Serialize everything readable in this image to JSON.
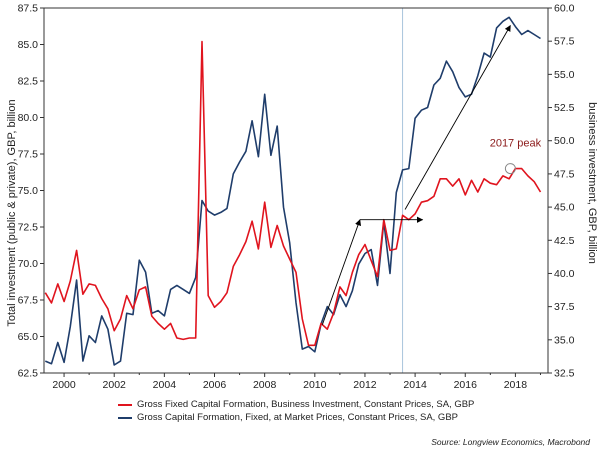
{
  "chart_data": {
    "type": "line",
    "title": "",
    "xlabel": "",
    "ylabel_left": "Total investment (public & private), GBP, billion",
    "ylabel_right": "business investment, GBP, billion",
    "xlim": [
      1999.2,
      2019.3
    ],
    "ylim_left": [
      62.5,
      87.5
    ],
    "ylim_right": [
      32.5,
      60.0
    ],
    "x_ticks": [
      2000,
      2002,
      2004,
      2006,
      2008,
      2010,
      2012,
      2014,
      2016,
      2018
    ],
    "y_ticks_left": [
      "62.5",
      "65.0",
      "67.5",
      "70.0",
      "72.5",
      "75.0",
      "77.5",
      "80.0",
      "82.5",
      "85.0",
      "87.5"
    ],
    "y_ticks_right": [
      "32.5",
      "35.0",
      "37.5",
      "40.0",
      "42.5",
      "45.0",
      "47.5",
      "50.0",
      "52.5",
      "55.0",
      "57.5",
      "60.0"
    ],
    "grid": false,
    "vertical_marker_x": 2013.5,
    "series": [
      {
        "name": "Gross Fixed Capital Formation, Business Investment, Constant Prices, SA, GBP",
        "color": "#e0141e",
        "axis": "left",
        "x": [
          1999.25,
          1999.5,
          1999.75,
          2000.0,
          2000.25,
          2000.5,
          2000.75,
          2001.0,
          2001.25,
          2001.5,
          2001.75,
          2002.0,
          2002.25,
          2002.5,
          2002.75,
          2003.0,
          2003.25,
          2003.5,
          2003.75,
          2004.0,
          2004.25,
          2004.5,
          2004.75,
          2005.0,
          2005.25,
          2005.5,
          2005.75,
          2006.0,
          2006.25,
          2006.5,
          2006.75,
          2007.0,
          2007.25,
          2007.5,
          2007.75,
          2008.0,
          2008.25,
          2008.5,
          2008.75,
          2009.0,
          2009.25,
          2009.5,
          2009.75,
          2010.0,
          2010.25,
          2010.5,
          2010.75,
          2011.0,
          2011.25,
          2011.5,
          2011.75,
          2012.0,
          2012.25,
          2012.5,
          2012.75,
          2013.0,
          2013.25,
          2013.5,
          2013.75,
          2014.0,
          2014.25,
          2014.5,
          2014.75,
          2015.0,
          2015.25,
          2015.5,
          2015.75,
          2016.0,
          2016.25,
          2016.5,
          2016.75,
          2017.0,
          2017.25,
          2017.5,
          2017.75,
          2018.0,
          2018.25,
          2018.5,
          2018.75,
          2019.0
        ],
        "values": [
          68.0,
          67.3,
          68.6,
          67.4,
          68.8,
          70.9,
          67.9,
          68.6,
          68.5,
          67.6,
          66.9,
          65.4,
          66.2,
          67.8,
          66.9,
          68.2,
          68.4,
          66.4,
          65.9,
          65.5,
          65.9,
          64.9,
          64.8,
          64.9,
          64.9,
          85.2,
          67.8,
          67.0,
          67.4,
          68.0,
          69.8,
          70.6,
          71.5,
          72.9,
          71.0,
          74.2,
          71.1,
          72.6,
          71.2,
          70.3,
          69.4,
          66.2,
          64.4,
          64.4,
          65.9,
          65.5,
          66.6,
          68.4,
          67.8,
          69.4,
          70.6,
          71.3,
          70.2,
          69.1,
          73.0,
          70.9,
          71.0,
          73.3,
          73.0,
          73.4,
          74.2,
          74.3,
          74.6,
          75.8,
          75.8,
          75.3,
          75.8,
          74.7,
          75.7,
          74.9,
          75.8,
          75.5,
          75.4,
          76.0,
          75.8,
          76.5,
          76.5,
          76.0,
          75.6,
          74.9
        ]
      },
      {
        "name": "Gross Capital Formation, Fixed, at Market Prices, Constant Prices, SA, GBP",
        "color": "#1f3d6b",
        "axis": "right",
        "x": [
          1999.25,
          1999.5,
          1999.75,
          2000.0,
          2000.25,
          2000.5,
          2000.75,
          2001.0,
          2001.25,
          2001.5,
          2001.75,
          2002.0,
          2002.25,
          2002.5,
          2002.75,
          2003.0,
          2003.25,
          2003.5,
          2003.75,
          2004.0,
          2004.25,
          2004.5,
          2004.75,
          2005.0,
          2005.25,
          2005.5,
          2005.75,
          2006.0,
          2006.25,
          2006.5,
          2006.75,
          2007.0,
          2007.25,
          2007.5,
          2007.75,
          2008.0,
          2008.25,
          2008.5,
          2008.75,
          2009.0,
          2009.25,
          2009.5,
          2009.75,
          2010.0,
          2010.25,
          2010.5,
          2010.75,
          2011.0,
          2011.25,
          2011.5,
          2011.75,
          2012.0,
          2012.25,
          2012.5,
          2012.75,
          2013.0,
          2013.25,
          2013.5,
          2013.75,
          2014.0,
          2014.25,
          2014.5,
          2014.75,
          2015.0,
          2015.25,
          2015.5,
          2015.75,
          2016.0,
          2016.25,
          2016.5,
          2016.75,
          2017.0,
          2017.25,
          2017.5,
          2017.75,
          2018.0,
          2018.25,
          2018.5,
          2018.75,
          2019.0
        ],
        "values": [
          33.4,
          33.2,
          34.8,
          33.3,
          36.0,
          39.5,
          33.4,
          35.3,
          34.8,
          36.8,
          35.8,
          33.1,
          33.4,
          37.0,
          36.9,
          41.0,
          40.1,
          37.0,
          37.2,
          36.8,
          38.8,
          39.1,
          38.8,
          38.5,
          39.7,
          45.5,
          44.7,
          44.4,
          44.6,
          44.9,
          47.5,
          48.4,
          49.2,
          51.5,
          48.8,
          53.5,
          48.9,
          51.1,
          45.0,
          42.3,
          37.8,
          34.3,
          34.5,
          34.1,
          36.2,
          37.5,
          36.9,
          38.4,
          37.5,
          38.7,
          40.7,
          41.5,
          41.8,
          39.1,
          43.9,
          40.0,
          46.1,
          47.8,
          47.9,
          51.7,
          52.3,
          52.5,
          54.2,
          54.7,
          56.0,
          55.2,
          54.0,
          53.3,
          53.5,
          54.9,
          56.6,
          56.3,
          58.5,
          59.0,
          59.3,
          58.6,
          58.0,
          58.3,
          58.0,
          57.7
        ]
      }
    ],
    "annotations": [
      {
        "type": "arrow",
        "from": [
          2010.3,
          65.8
        ],
        "to": [
          2011.8,
          73.0
        ]
      },
      {
        "type": "arrow",
        "from": [
          2011.8,
          73.0
        ],
        "to": [
          2014.3,
          73.0
        ]
      },
      {
        "type": "arrow",
        "from": [
          2013.6,
          73.7
        ],
        "to": [
          2017.8,
          86.3
        ]
      },
      {
        "type": "text",
        "text": "2017 peak",
        "at": [
          2018.0,
          78.0
        ]
      },
      {
        "type": "circle",
        "at": [
          2017.8,
          76.5
        ]
      }
    ],
    "source": "Source: Longview Economics, Macrobond"
  },
  "colors": {
    "axis": "#333333",
    "marker_line": "#a9c4dc",
    "annotation_arrow": "#000000",
    "peak_text": "#8b1a1a"
  }
}
